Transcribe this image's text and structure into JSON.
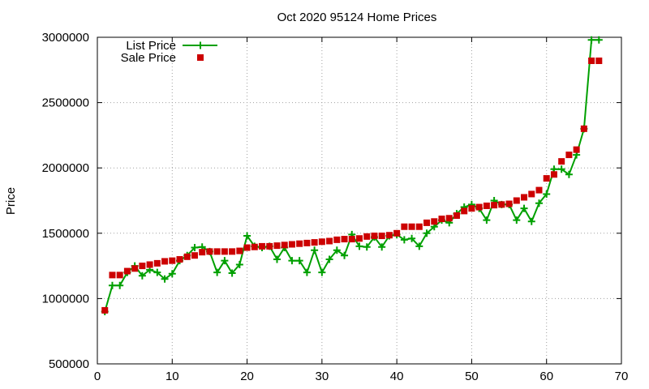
{
  "chart_data": {
    "type": "scatter",
    "title": "Oct 2020 95124 Home Prices",
    "xlabel": "",
    "ylabel": "Price",
    "xlim": [
      0,
      70
    ],
    "ylim": [
      500000,
      3000000
    ],
    "xticks": [
      0,
      10,
      20,
      30,
      40,
      50,
      60,
      70
    ],
    "yticks": [
      500000,
      1000000,
      1500000,
      2000000,
      2500000,
      3000000
    ],
    "grid": true,
    "legend_position": "top-left",
    "series": [
      {
        "name": "List Price",
        "kind": "line-points",
        "color": "#00a000",
        "x": [
          1,
          2,
          3,
          4,
          5,
          6,
          7,
          8,
          9,
          10,
          11,
          12,
          13,
          14,
          15,
          16,
          17,
          18,
          19,
          20,
          21,
          22,
          23,
          24,
          25,
          26,
          27,
          28,
          29,
          30,
          31,
          32,
          33,
          34,
          35,
          36,
          37,
          38,
          39,
          40,
          41,
          42,
          43,
          44,
          45,
          46,
          47,
          48,
          49,
          50,
          51,
          52,
          53,
          54,
          55,
          56,
          57,
          58,
          59,
          60,
          61,
          62,
          63,
          64,
          65,
          66,
          67
        ],
        "y": [
          900000,
          1100000,
          1100000,
          1200000,
          1250000,
          1175000,
          1220000,
          1200000,
          1150000,
          1190000,
          1290000,
          1330000,
          1390000,
          1395000,
          1360000,
          1200000,
          1290000,
          1195000,
          1260000,
          1480000,
          1400000,
          1390000,
          1400000,
          1300000,
          1390000,
          1290000,
          1290000,
          1200000,
          1370000,
          1200000,
          1300000,
          1370000,
          1330000,
          1490000,
          1400000,
          1395000,
          1470000,
          1395000,
          1480000,
          1490000,
          1450000,
          1460000,
          1400000,
          1500000,
          1550000,
          1600000,
          1580000,
          1650000,
          1700000,
          1720000,
          1690000,
          1600000,
          1750000,
          1720000,
          1720000,
          1600000,
          1690000,
          1590000,
          1730000,
          1800000,
          1990000,
          1990000,
          1950000,
          2100000,
          2300000,
          2980000,
          2980000
        ]
      },
      {
        "name": "Sale Price",
        "kind": "points",
        "color": "#cc0000",
        "x": [
          1,
          2,
          3,
          4,
          5,
          6,
          7,
          8,
          9,
          10,
          11,
          12,
          13,
          14,
          15,
          16,
          17,
          18,
          19,
          20,
          21,
          22,
          23,
          24,
          25,
          26,
          27,
          28,
          29,
          30,
          31,
          32,
          33,
          34,
          35,
          36,
          37,
          38,
          39,
          40,
          41,
          42,
          43,
          44,
          45,
          46,
          47,
          48,
          49,
          50,
          51,
          52,
          53,
          54,
          55,
          56,
          57,
          58,
          59,
          60,
          61,
          62,
          63,
          64,
          65,
          66,
          67
        ],
        "y": [
          910000,
          1180000,
          1180000,
          1210000,
          1230000,
          1250000,
          1260000,
          1270000,
          1285000,
          1290000,
          1300000,
          1320000,
          1330000,
          1355000,
          1360000,
          1360000,
          1360000,
          1360000,
          1365000,
          1390000,
          1395000,
          1400000,
          1400000,
          1405000,
          1410000,
          1415000,
          1420000,
          1425000,
          1430000,
          1435000,
          1440000,
          1450000,
          1455000,
          1455000,
          1460000,
          1475000,
          1480000,
          1480000,
          1485000,
          1500000,
          1550000,
          1550000,
          1550000,
          1580000,
          1590000,
          1610000,
          1615000,
          1635000,
          1670000,
          1690000,
          1700000,
          1710000,
          1715000,
          1720000,
          1725000,
          1750000,
          1775000,
          1800000,
          1830000,
          1920000,
          1950000,
          2050000,
          2100000,
          2140000,
          2300000,
          2820000,
          2820000
        ]
      }
    ]
  }
}
